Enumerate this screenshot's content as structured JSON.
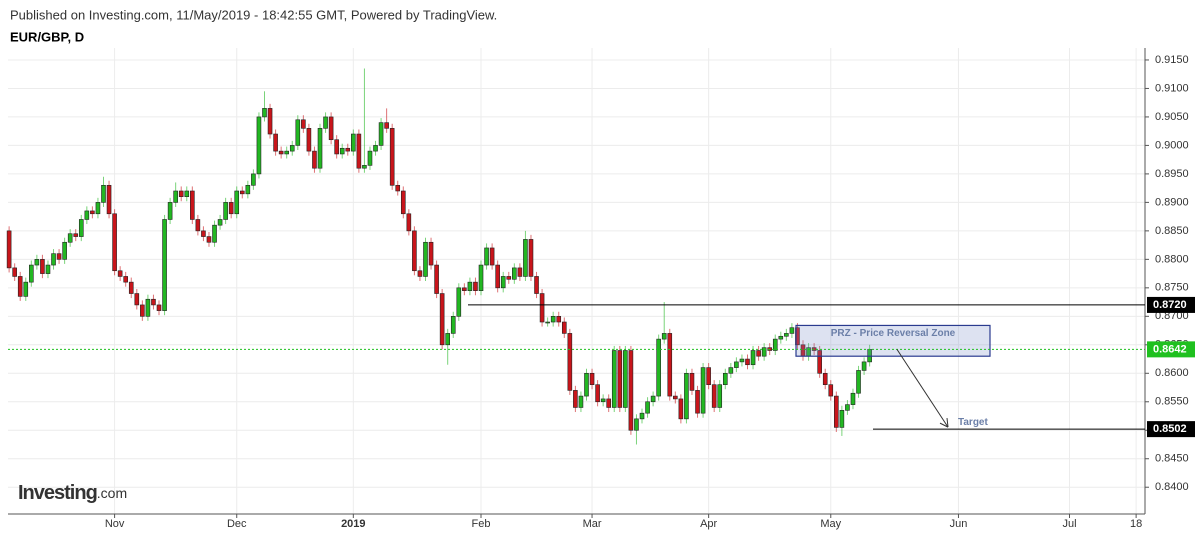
{
  "chart_data": {
    "type": "candlestick",
    "source": "Published on Investing.com, 11/May/2019 - 18:42:55 GMT, Powered by TradingView.",
    "title": "EUR/GBP, D",
    "logo": {
      "name": "Investing",
      "suffix": ".com"
    },
    "up_color": "#22b722",
    "down_color": "#c8151b",
    "grid": true,
    "open": [
      0.885,
      0.8785,
      0.877,
      0.8735,
      0.876,
      0.879,
      0.88,
      0.8775,
      0.879,
      0.881,
      0.88,
      0.883,
      0.8845,
      0.884,
      0.887,
      0.8885,
      0.888,
      0.89,
      0.893,
      0.888,
      0.878,
      0.877,
      0.876,
      0.874,
      0.872,
      0.87,
      0.873,
      0.872,
      0.871,
      0.887,
      0.89,
      0.892,
      0.891,
      0.892,
      0.887,
      0.885,
      0.884,
      0.883,
      0.886,
      0.887,
      0.89,
      0.888,
      0.892,
      0.8915,
      0.893,
      0.895,
      0.905,
      0.9065,
      0.902,
      0.899,
      0.8985,
      0.899,
      0.9,
      0.9045,
      0.903,
      0.899,
      0.896,
      0.903,
      0.905,
      0.901,
      0.8985,
      0.8995,
      0.899,
      0.902,
      0.896,
      0.8965,
      0.899,
      0.9,
      0.904,
      0.903,
      0.893,
      0.892,
      0.888,
      0.885,
      0.878,
      0.877,
      0.883,
      0.879,
      0.874,
      0.865,
      0.867,
      0.87,
      0.875,
      0.8745,
      0.876,
      0.8745,
      0.879,
      0.882,
      0.879,
      0.875,
      0.877,
      0.8765,
      0.8785,
      0.877,
      0.8835,
      0.877,
      0.874,
      0.869,
      0.869,
      0.87,
      0.869,
      0.867,
      0.857,
      0.854,
      0.856,
      0.86,
      0.858,
      0.855,
      0.8555,
      0.854,
      0.864,
      0.854,
      0.864,
      0.85,
      0.852,
      0.853,
      0.855,
      0.856,
      0.866,
      0.867,
      0.856,
      0.8555,
      0.852,
      0.86,
      0.857,
      0.853,
      0.861,
      0.858,
      0.854,
      0.858,
      0.86,
      0.861,
      0.862,
      0.8625,
      0.8615,
      0.864,
      0.863,
      0.8645,
      0.864,
      0.866,
      0.8665,
      0.867,
      0.868,
      0.865,
      0.863,
      0.8645,
      0.864,
      0.86,
      0.858,
      0.856,
      0.8505,
      0.8535,
      0.8545,
      0.8565,
      0.8605,
      0.862
    ],
    "high": [
      0.8858,
      0.8793,
      0.8778,
      0.8768,
      0.8798,
      0.8808,
      0.8808,
      0.8798,
      0.8818,
      0.8818,
      0.8838,
      0.8853,
      0.8853,
      0.8878,
      0.8893,
      0.8893,
      0.8908,
      0.8945,
      0.8938,
      0.8888,
      0.8788,
      0.8778,
      0.8768,
      0.8748,
      0.8728,
      0.8738,
      0.8738,
      0.8728,
      0.8878,
      0.8908,
      0.8935,
      0.8928,
      0.8928,
      0.8928,
      0.8878,
      0.8858,
      0.8848,
      0.8868,
      0.8878,
      0.8908,
      0.8908,
      0.8928,
      0.8928,
      0.8938,
      0.8958,
      0.9058,
      0.9095,
      0.9073,
      0.9028,
      0.8998,
      0.8998,
      0.9008,
      0.9053,
      0.9053,
      0.9038,
      0.8998,
      0.9038,
      0.9058,
      0.9058,
      0.9018,
      0.9003,
      0.9003,
      0.9028,
      0.9028,
      0.9135,
      0.8998,
      0.9008,
      0.9048,
      0.9065,
      0.9038,
      0.8938,
      0.8928,
      0.8888,
      0.8858,
      0.8788,
      0.8838,
      0.8838,
      0.8798,
      0.8748,
      0.8678,
      0.8708,
      0.8758,
      0.8758,
      0.8768,
      0.8768,
      0.8798,
      0.8828,
      0.8828,
      0.8798,
      0.8778,
      0.8778,
      0.8793,
      0.8793,
      0.885,
      0.8843,
      0.8778,
      0.8748,
      0.8698,
      0.8708,
      0.8708,
      0.8698,
      0.8678,
      0.8578,
      0.8568,
      0.8608,
      0.8608,
      0.8588,
      0.8563,
      0.8563,
      0.8648,
      0.8648,
      0.8648,
      0.8648,
      0.8528,
      0.8538,
      0.8558,
      0.8568,
      0.8668,
      0.8725,
      0.8678,
      0.8568,
      0.8563,
      0.8608,
      0.8608,
      0.8578,
      0.8618,
      0.8618,
      0.8588,
      0.8588,
      0.8608,
      0.8618,
      0.8628,
      0.8633,
      0.8633,
      0.8648,
      0.8648,
      0.8653,
      0.8653,
      0.8668,
      0.8673,
      0.8678,
      0.8688,
      0.8688,
      0.8658,
      0.8653,
      0.8653,
      0.8648,
      0.8608,
      0.8588,
      0.8568,
      0.8543,
      0.8553,
      0.8573,
      0.8613,
      0.8628,
      0.865
    ],
    "low": [
      0.8777,
      0.8762,
      0.8727,
      0.8727,
      0.8752,
      0.8782,
      0.8767,
      0.8767,
      0.8782,
      0.8792,
      0.8792,
      0.8822,
      0.8832,
      0.8832,
      0.8862,
      0.8872,
      0.8872,
      0.8892,
      0.8872,
      0.8772,
      0.8762,
      0.8752,
      0.8732,
      0.8712,
      0.8692,
      0.8692,
      0.8712,
      0.8702,
      0.8702,
      0.8862,
      0.8892,
      0.8902,
      0.8902,
      0.8862,
      0.8842,
      0.8832,
      0.8822,
      0.8822,
      0.8852,
      0.8862,
      0.8872,
      0.8872,
      0.8907,
      0.8907,
      0.8922,
      0.8942,
      0.9042,
      0.9012,
      0.8982,
      0.8977,
      0.8977,
      0.8982,
      0.8992,
      0.9022,
      0.8982,
      0.8952,
      0.8952,
      0.9022,
      0.9002,
      0.8977,
      0.8977,
      0.8982,
      0.8982,
      0.8952,
      0.8952,
      0.8957,
      0.8982,
      0.8992,
      0.9022,
      0.8922,
      0.8912,
      0.8872,
      0.8842,
      0.8772,
      0.8762,
      0.8762,
      0.8782,
      0.8732,
      0.8642,
      0.8615,
      0.8662,
      0.8692,
      0.8737,
      0.8737,
      0.8737,
      0.8737,
      0.8782,
      0.8782,
      0.8742,
      0.8742,
      0.8757,
      0.8757,
      0.8762,
      0.8762,
      0.8762,
      0.8732,
      0.8682,
      0.8682,
      0.8682,
      0.8682,
      0.8662,
      0.8562,
      0.8532,
      0.8532,
      0.8552,
      0.8572,
      0.8542,
      0.8542,
      0.8532,
      0.8532,
      0.8532,
      0.8532,
      0.8492,
      0.8475,
      0.8512,
      0.8522,
      0.8542,
      0.8552,
      0.8652,
      0.8552,
      0.8547,
      0.8512,
      0.8512,
      0.8562,
      0.8522,
      0.8522,
      0.8572,
      0.8532,
      0.8532,
      0.8572,
      0.8592,
      0.8602,
      0.8612,
      0.8607,
      0.8607,
      0.8622,
      0.8622,
      0.8632,
      0.8632,
      0.8652,
      0.8657,
      0.8662,
      0.8642,
      0.8622,
      0.8622,
      0.8632,
      0.8592,
      0.8572,
      0.8552,
      0.8497,
      0.849,
      0.8527,
      0.8537,
      0.8557,
      0.8597,
      0.8612
    ],
    "close": [
      0.8785,
      0.877,
      0.8735,
      0.876,
      0.879,
      0.88,
      0.8775,
      0.879,
      0.881,
      0.88,
      0.883,
      0.8845,
      0.884,
      0.887,
      0.8885,
      0.888,
      0.89,
      0.893,
      0.888,
      0.878,
      0.877,
      0.876,
      0.874,
      0.872,
      0.87,
      0.873,
      0.872,
      0.871,
      0.887,
      0.89,
      0.892,
      0.891,
      0.892,
      0.887,
      0.885,
      0.884,
      0.883,
      0.886,
      0.887,
      0.89,
      0.888,
      0.892,
      0.8915,
      0.893,
      0.895,
      0.905,
      0.9065,
      0.902,
      0.899,
      0.8985,
      0.899,
      0.9,
      0.9045,
      0.903,
      0.899,
      0.896,
      0.903,
      0.905,
      0.901,
      0.8985,
      0.8995,
      0.899,
      0.902,
      0.896,
      0.8965,
      0.899,
      0.9,
      0.904,
      0.903,
      0.893,
      0.892,
      0.888,
      0.885,
      0.878,
      0.877,
      0.883,
      0.879,
      0.874,
      0.865,
      0.867,
      0.87,
      0.875,
      0.8745,
      0.876,
      0.8745,
      0.879,
      0.882,
      0.879,
      0.875,
      0.877,
      0.8765,
      0.8785,
      0.877,
      0.8835,
      0.877,
      0.874,
      0.869,
      0.869,
      0.87,
      0.869,
      0.867,
      0.857,
      0.854,
      0.856,
      0.86,
      0.858,
      0.855,
      0.8555,
      0.854,
      0.864,
      0.854,
      0.864,
      0.85,
      0.852,
      0.853,
      0.855,
      0.856,
      0.866,
      0.867,
      0.856,
      0.8555,
      0.852,
      0.86,
      0.857,
      0.853,
      0.861,
      0.858,
      0.854,
      0.858,
      0.86,
      0.861,
      0.862,
      0.8625,
      0.8615,
      0.864,
      0.863,
      0.8645,
      0.864,
      0.866,
      0.8665,
      0.867,
      0.868,
      0.865,
      0.863,
      0.8645,
      0.864,
      0.86,
      0.858,
      0.856,
      0.8505,
      0.8535,
      0.8545,
      0.8565,
      0.8605,
      0.862,
      0.8642
    ],
    "ylim": [
      0.8353,
      0.9171
    ],
    "yticks": [
      {
        "value": 0.84,
        "label": "0.8400"
      },
      {
        "value": 0.845,
        "label": "0.8450"
      },
      {
        "value": 0.85,
        "label": "0.8500"
      },
      {
        "value": 0.855,
        "label": "0.8550"
      },
      {
        "value": 0.86,
        "label": "0.8600"
      },
      {
        "value": 0.865,
        "label": "0.8650"
      },
      {
        "value": 0.87,
        "label": "0.8700"
      },
      {
        "value": 0.875,
        "label": "0.8750"
      },
      {
        "value": 0.88,
        "label": "0.8800"
      },
      {
        "value": 0.885,
        "label": "0.8850"
      },
      {
        "value": 0.89,
        "label": "0.8900"
      },
      {
        "value": 0.895,
        "label": "0.8950"
      },
      {
        "value": 0.9,
        "label": "0.9000"
      },
      {
        "value": 0.905,
        "label": "0.9050"
      },
      {
        "value": 0.91,
        "label": "0.9100"
      },
      {
        "value": 0.915,
        "label": "0.9150"
      }
    ],
    "xlim": [
      -0.2,
      204.6
    ],
    "xticks": [
      {
        "value": 19,
        "label": "Nov"
      },
      {
        "value": 41,
        "label": "Dec"
      },
      {
        "value": 62,
        "label": "2019"
      },
      {
        "value": 85,
        "label": "Feb"
      },
      {
        "value": 105,
        "label": "Mar"
      },
      {
        "value": 126,
        "label": "Apr"
      },
      {
        "value": 148,
        "label": "May"
      },
      {
        "value": 171,
        "label": "Jun"
      },
      {
        "value": 191,
        "label": "Jul"
      },
      {
        "value": 203,
        "label": "18"
      }
    ],
    "price_lines": [
      {
        "value": 0.872,
        "label": "0.8720",
        "color": "#000000"
      },
      {
        "value": 0.8642,
        "label": "0.8642",
        "color": "#1fc01f"
      },
      {
        "value": 0.8502,
        "label": "0.8502",
        "color": "#000000"
      }
    ],
    "zone": {
      "label": "PRZ - Price Reversal Zone",
      "top": 0.8684,
      "bottom": 0.863
    },
    "target_label": "Target"
  }
}
